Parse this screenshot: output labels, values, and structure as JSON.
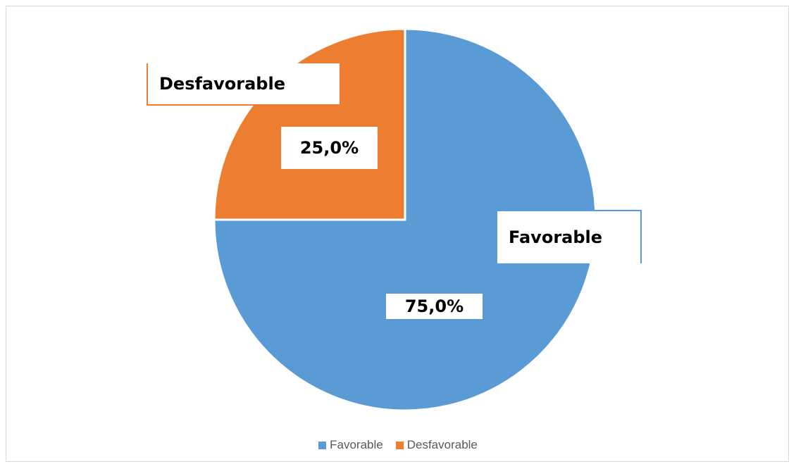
{
  "chart_data": {
    "type": "pie",
    "title": "",
    "categories": [
      "Favorable",
      "Desfavorable"
    ],
    "values": [
      75.0,
      25.0
    ],
    "value_labels": [
      "75,0%",
      "25,0%"
    ],
    "colors": [
      "#5B9BD5",
      "#ED7D31"
    ],
    "start_angle": "12 o'clock, clockwise",
    "legend": {
      "position": "bottom",
      "entries": [
        "Favorable",
        "Desfavorable"
      ]
    },
    "data_labels": {
      "show_category": true,
      "show_percent": true
    }
  }
}
